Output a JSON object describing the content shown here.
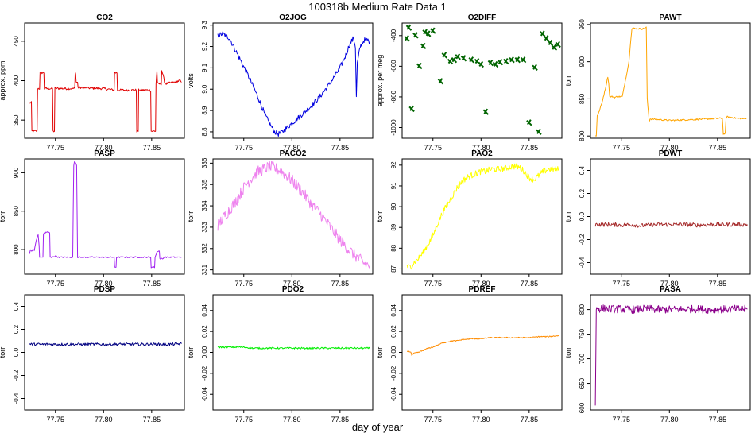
{
  "figure": {
    "title": "100318b   Medium Rate Data 1",
    "xlabel": "day of year"
  },
  "chart_data": [
    {
      "type": "line",
      "title": "CO2",
      "ylabel": "approx. ppm",
      "color": "#e00000",
      "xlim": [
        77.718,
        77.884
      ],
      "ylim": [
        327,
        473
      ],
      "xticks": [
        77.75,
        77.8,
        77.85
      ],
      "xtick_labels": [
        "77.75",
        "77.80",
        "77.85"
      ],
      "yticks": [
        350,
        400,
        450
      ],
      "ytick_labels": [
        "350",
        "400",
        "450"
      ],
      "noise": 1.5,
      "x": [
        77.723,
        77.725,
        77.7255,
        77.731,
        77.7315,
        77.7335,
        77.734,
        77.738,
        77.7385,
        77.747,
        77.7475,
        77.749,
        77.7495,
        77.77,
        77.7705,
        77.771,
        77.7715,
        77.773,
        77.7735,
        77.8,
        77.811,
        77.8115,
        77.814,
        77.8145,
        77.834,
        77.8345,
        77.836,
        77.8365,
        77.849,
        77.8495,
        77.854,
        77.8545,
        77.8555,
        77.856,
        77.86,
        77.8605,
        77.864,
        77.869,
        77.874,
        77.879,
        77.881
      ],
      "y": [
        372,
        372,
        336,
        336,
        390,
        390,
        410,
        410,
        390,
        390,
        336,
        336,
        390,
        390,
        410,
        410,
        398,
        398,
        391,
        390,
        388,
        410,
        410,
        388,
        388,
        336,
        336,
        388,
        388,
        336,
        336,
        396,
        413,
        396,
        396,
        413,
        396,
        397,
        398,
        400,
        398
      ]
    },
    {
      "type": "line",
      "title": "O2JOG",
      "ylabel": "volts",
      "color": "#0000e0",
      "xlim": [
        77.718,
        77.884
      ],
      "ylim": [
        8.77,
        9.31
      ],
      "xticks": [
        77.75,
        77.8,
        77.85
      ],
      "xtick_labels": [
        "77.75",
        "77.80",
        "77.85"
      ],
      "yticks": [
        8.8,
        8.9,
        9.0,
        9.1,
        9.2,
        9.3
      ],
      "ytick_labels": [
        "8.8",
        "8.9",
        "9.0",
        "9.1",
        "9.2",
        "9.3"
      ],
      "noise": 0.012,
      "x": [
        77.723,
        77.728,
        77.735,
        77.745,
        77.755,
        77.765,
        77.772,
        77.778,
        77.782,
        77.786,
        77.79,
        77.795,
        77.8,
        77.81,
        77.82,
        77.83,
        77.84,
        77.85,
        77.856,
        77.86,
        77.864,
        77.866,
        77.867,
        77.868,
        77.871,
        77.875,
        77.879,
        77.881
      ],
      "y": [
        9.25,
        9.26,
        9.24,
        9.15,
        9.06,
        8.96,
        8.88,
        8.83,
        8.8,
        8.79,
        8.8,
        8.82,
        8.84,
        8.88,
        8.92,
        8.97,
        9.03,
        9.1,
        9.16,
        9.21,
        9.24,
        9.2,
        8.96,
        9.12,
        9.2,
        9.23,
        9.23,
        9.22
      ]
    },
    {
      "type": "scatter",
      "title": "O2DIFF",
      "ylabel": "approx. per meg",
      "color": "#006400",
      "xlim": [
        77.718,
        77.884
      ],
      "ylim": [
        -1070,
        -318
      ],
      "xticks": [
        77.75,
        77.8,
        77.85
      ],
      "xtick_labels": [
        "77.75",
        "77.80",
        "77.85"
      ],
      "yticks": [
        -1000,
        -800,
        -600,
        -400
      ],
      "ytick_labels": [
        "-1000",
        "-800",
        "-600",
        "-400"
      ],
      "noise": 8,
      "x": [
        77.723,
        77.725,
        77.728,
        77.732,
        77.736,
        77.74,
        77.742,
        77.745,
        77.75,
        77.758,
        77.762,
        77.768,
        77.772,
        77.776,
        77.782,
        77.79,
        77.796,
        77.8,
        77.805,
        77.81,
        77.815,
        77.82,
        77.826,
        77.832,
        77.838,
        77.844,
        77.85,
        77.856,
        77.86,
        77.864,
        77.868,
        77.872,
        77.876,
        77.88
      ],
      "y": [
        -420,
        -350,
        -880,
        -400,
        -600,
        -470,
        -380,
        -390,
        -370,
        -700,
        -530,
        -570,
        -560,
        -540,
        -550,
        -560,
        -570,
        -590,
        -900,
        -580,
        -590,
        -575,
        -570,
        -560,
        -560,
        -560,
        -970,
        -610,
        -1030,
        -390,
        -420,
        -450,
        -480,
        -460
      ]
    },
    {
      "type": "line",
      "title": "PAWT",
      "ylabel": "torr",
      "color": "#ffa500",
      "xlim": [
        77.718,
        77.884
      ],
      "ylim": [
        797,
        952
      ],
      "xticks": [
        77.75,
        77.8,
        77.85
      ],
      "xtick_labels": [
        "77.75",
        "77.80",
        "77.85"
      ],
      "yticks": [
        800,
        850,
        900,
        950
      ],
      "ytick_labels": [
        "800",
        "850",
        "900",
        "950"
      ],
      "noise": 1,
      "x": [
        77.723,
        77.724,
        77.725,
        77.726,
        77.73,
        77.734,
        77.736,
        77.737,
        77.738,
        77.741,
        77.743,
        77.746,
        77.751,
        77.7515,
        77.758,
        77.76,
        77.761,
        77.762,
        77.772,
        77.776,
        77.777,
        77.779,
        77.78,
        77.8,
        77.82,
        77.84,
        77.855,
        77.856,
        77.858,
        77.859,
        77.86,
        77.87,
        77.88
      ],
      "y": [
        800,
        800,
        828,
        829,
        845,
        867,
        880,
        870,
        853,
        853,
        852,
        853,
        853,
        856,
        900,
        932,
        944,
        945,
        944,
        946,
        850,
        820,
        823,
        821,
        822,
        823,
        824,
        803,
        803,
        825,
        826,
        824,
        823
      ]
    },
    {
      "type": "line",
      "title": "PASP",
      "ylabel": "torr",
      "color": "#a020f0",
      "xlim": [
        77.718,
        77.884
      ],
      "ylim": [
        768,
        918
      ],
      "xticks": [
        77.75,
        77.8,
        77.85
      ],
      "xtick_labels": [
        "77.75",
        "77.80",
        "77.85"
      ],
      "yticks": [
        800,
        850,
        900
      ],
      "ytick_labels": [
        "800",
        "850",
        "900"
      ],
      "noise": 0.8,
      "x": [
        77.723,
        77.724,
        77.725,
        77.727,
        77.728,
        77.73,
        77.732,
        77.733,
        77.7335,
        77.737,
        77.7375,
        77.739,
        77.74,
        77.741,
        77.742,
        77.744,
        77.7445,
        77.745,
        77.746,
        77.7465,
        77.749,
        77.75,
        77.753,
        77.756,
        77.76,
        77.765,
        77.768,
        77.769,
        77.77,
        77.771,
        77.772,
        77.773,
        77.775,
        77.78,
        77.79,
        77.8,
        77.81,
        77.811,
        77.8115,
        77.813,
        77.8135,
        77.816,
        77.8165,
        77.83,
        77.849,
        77.8495,
        77.853,
        77.8535,
        77.856,
        77.858,
        77.8585,
        77.862,
        77.8625,
        77.87,
        77.881
      ],
      "y": [
        795,
        800,
        798,
        801,
        798,
        812,
        819,
        805,
        790,
        790,
        820,
        822,
        822,
        823,
        823,
        822,
        790,
        790,
        789,
        790,
        791,
        792,
        790,
        790,
        790,
        790,
        790,
        910,
        915,
        913,
        910,
        790,
        790,
        790,
        790,
        790,
        790,
        790,
        777,
        777,
        790,
        790,
        790,
        790,
        790,
        777,
        777,
        790,
        798,
        798,
        788,
        788,
        790,
        790,
        790
      ]
    },
    {
      "type": "line",
      "title": "PACO2",
      "ylabel": "torr",
      "color": "#ee82ee",
      "xlim": [
        77.718,
        77.884
      ],
      "ylim": [
        330.8,
        336.2
      ],
      "xticks": [
        77.75,
        77.8,
        77.85
      ],
      "xtick_labels": [
        "77.75",
        "77.80",
        "77.85"
      ],
      "yticks": [
        331,
        332,
        333,
        334,
        335,
        336
      ],
      "ytick_labels": [
        "331",
        "332",
        "333",
        "334",
        "335",
        "336"
      ],
      "noise": 0.28,
      "x": [
        77.723,
        77.728,
        77.733,
        77.738,
        77.743,
        77.748,
        77.754,
        77.76,
        77.765,
        77.77,
        77.775,
        77.78,
        77.785,
        77.79,
        77.795,
        77.8,
        77.81,
        77.82,
        77.83,
        77.84,
        77.85,
        77.86,
        77.87,
        77.875,
        77.881
      ],
      "y": [
        333.1,
        333.4,
        333.7,
        334.0,
        334.3,
        334.7,
        335.1,
        335.4,
        335.6,
        335.7,
        335.8,
        335.8,
        335.7,
        335.6,
        335.4,
        335.2,
        334.7,
        334.1,
        333.6,
        333.0,
        332.4,
        331.9,
        331.5,
        331.3,
        331.2
      ]
    },
    {
      "type": "line",
      "title": "PAO2",
      "ylabel": "torr",
      "color": "#ffff00",
      "xlim": [
        77.718,
        77.884
      ],
      "ylim": [
        86.75,
        92.3
      ],
      "xticks": [
        77.75,
        77.8,
        77.85
      ],
      "xtick_labels": [
        "77.75",
        "77.80",
        "77.85"
      ],
      "yticks": [
        87,
        88,
        89,
        90,
        91,
        92
      ],
      "ytick_labels": [
        "87",
        "88",
        "89",
        "90",
        "91",
        "92"
      ],
      "noise": 0.15,
      "x": [
        77.723,
        77.727,
        77.73,
        77.735,
        77.74,
        77.745,
        77.75,
        77.755,
        77.76,
        77.765,
        77.77,
        77.775,
        77.78,
        77.785,
        77.79,
        77.795,
        77.8,
        77.805,
        77.81,
        77.815,
        77.82,
        77.825,
        77.83,
        77.835,
        77.84,
        77.845,
        77.85,
        77.855,
        77.86,
        77.865,
        77.87,
        77.875,
        77.881
      ],
      "y": [
        87.1,
        87.1,
        87.3,
        87.5,
        87.8,
        88.2,
        88.6,
        89.2,
        89.7,
        90.1,
        90.5,
        90.9,
        91.2,
        91.4,
        91.5,
        91.6,
        91.7,
        91.7,
        91.8,
        91.8,
        91.8,
        91.85,
        91.9,
        91.95,
        91.9,
        91.7,
        91.4,
        91.3,
        91.5,
        91.7,
        91.8,
        91.8,
        91.8
      ]
    },
    {
      "type": "line",
      "title": "PDWT",
      "ylabel": "torr",
      "color": "#a52a2a",
      "xlim": [
        77.718,
        77.884
      ],
      "ylim": [
        -0.5,
        0.5
      ],
      "xticks": [
        77.75,
        77.8,
        77.85
      ],
      "xtick_labels": [
        "77.75",
        "77.80",
        "77.85"
      ],
      "yticks": [
        -0.4,
        -0.2,
        0.0,
        0.2,
        0.4
      ],
      "ytick_labels": [
        "-0.4",
        "-0.2",
        "0.0",
        "0.2",
        "0.4"
      ],
      "noise": 0.018,
      "x": [
        77.723,
        77.73,
        77.74,
        77.75,
        77.76,
        77.77,
        77.78,
        77.79,
        77.8,
        77.81,
        77.82,
        77.83,
        77.84,
        77.85,
        77.86,
        77.87,
        77.881
      ],
      "y": [
        -0.07,
        -0.07,
        -0.07,
        -0.075,
        -0.07,
        -0.08,
        -0.075,
        -0.07,
        -0.07,
        -0.07,
        -0.07,
        -0.075,
        -0.07,
        -0.07,
        -0.07,
        -0.07,
        -0.07
      ]
    },
    {
      "type": "line",
      "title": "PDSP",
      "ylabel": "torr",
      "color": "#000080",
      "xlim": [
        77.718,
        77.884
      ],
      "ylim": [
        -0.5,
        0.5
      ],
      "xticks": [
        77.75,
        77.8,
        77.85
      ],
      "xtick_labels": [
        "77.75",
        "77.80",
        "77.85"
      ],
      "yticks": [
        -0.4,
        -0.2,
        0.0,
        0.2,
        0.4
      ],
      "ytick_labels": [
        "-0.4",
        "-0.2",
        "0.0",
        "0.2",
        "0.4"
      ],
      "noise": 0.012,
      "x": [
        77.723,
        77.73,
        77.74,
        77.75,
        77.76,
        77.77,
        77.78,
        77.79,
        77.8,
        77.81,
        77.82,
        77.83,
        77.84,
        77.85,
        77.86,
        77.87,
        77.881
      ],
      "y": [
        0.07,
        0.07,
        0.07,
        0.07,
        0.07,
        0.07,
        0.07,
        0.07,
        0.07,
        0.07,
        0.07,
        0.07,
        0.07,
        0.07,
        0.07,
        0.07,
        0.075
      ]
    },
    {
      "type": "line",
      "title": "PDO2",
      "ylabel": "torr",
      "color": "#00ee00",
      "xlim": [
        77.718,
        77.884
      ],
      "ylim": [
        -0.055,
        0.055
      ],
      "xticks": [
        77.75,
        77.8,
        77.85
      ],
      "xtick_labels": [
        "77.75",
        "77.80",
        "77.85"
      ],
      "yticks": [
        -0.04,
        -0.02,
        0.0,
        0.02,
        0.04
      ],
      "ytick_labels": [
        "-0.04",
        "-0.02",
        "0.00",
        "0.02",
        "0.04"
      ],
      "noise": 0.0008,
      "x": [
        77.723,
        77.73,
        77.74,
        77.75,
        77.76,
        77.77,
        77.78,
        77.79,
        77.8,
        77.81,
        77.82,
        77.83,
        77.84,
        77.85,
        77.86,
        77.87,
        77.875,
        77.881
      ],
      "y": [
        0.005,
        0.005,
        0.005,
        0.005,
        0.004,
        0.004,
        0.004,
        0.004,
        0.004,
        0.004,
        0.004,
        0.004,
        0.004,
        0.004,
        0.004,
        0.004,
        0.004,
        0.004
      ]
    },
    {
      "type": "line",
      "title": "PDREF",
      "ylabel": "torr",
      "color": "#ff8c00",
      "xlim": [
        77.718,
        77.884
      ],
      "ylim": [
        -0.055,
        0.055
      ],
      "xticks": [
        77.75,
        77.8,
        77.85
      ],
      "xtick_labels": [
        "77.75",
        "77.80",
        "77.85"
      ],
      "yticks": [
        -0.04,
        -0.02,
        0.0,
        0.02,
        0.04
      ],
      "ytick_labels": [
        "-0.04",
        "-0.02",
        "0.00",
        "0.02",
        "0.04"
      ],
      "noise": 0.0005,
      "x": [
        77.723,
        77.727,
        77.728,
        77.73,
        77.735,
        77.74,
        77.745,
        77.75,
        77.755,
        77.76,
        77.765,
        77.77,
        77.775,
        77.78,
        77.79,
        77.8,
        77.81,
        77.82,
        77.83,
        77.84,
        77.85,
        77.86,
        77.87,
        77.881
      ],
      "y": [
        0.001,
        0.0005,
        -0.003,
        -0.001,
        0.0,
        0.002,
        0.004,
        0.005,
        0.007,
        0.009,
        0.01,
        0.011,
        0.011,
        0.012,
        0.013,
        0.013,
        0.014,
        0.014,
        0.014,
        0.014,
        0.014,
        0.015,
        0.015,
        0.016
      ]
    },
    {
      "type": "line",
      "title": "PASA",
      "ylabel": "torr",
      "color": "#8b008b",
      "xlim": [
        77.718,
        77.884
      ],
      "ylim": [
        596,
        830
      ],
      "xticks": [
        77.75,
        77.8,
        77.85
      ],
      "xtick_labels": [
        "77.75",
        "77.80",
        "77.85"
      ],
      "yticks": [
        600,
        650,
        700,
        750,
        800
      ],
      "ytick_labels": [
        "600",
        "650",
        "700",
        "750",
        "800"
      ],
      "noise": 8,
      "x": [
        77.723,
        77.7235,
        77.724,
        77.725,
        77.73,
        77.74,
        77.75,
        77.755,
        77.76,
        77.765,
        77.77,
        77.78,
        77.79,
        77.8,
        77.81,
        77.82,
        77.83,
        77.84,
        77.85,
        77.86,
        77.87,
        77.881
      ],
      "y": [
        608,
        700,
        800,
        802,
        802,
        801,
        801,
        800,
        800,
        800,
        801,
        801,
        800,
        800,
        800,
        801,
        801,
        800,
        800,
        801,
        801,
        801
      ]
    }
  ]
}
